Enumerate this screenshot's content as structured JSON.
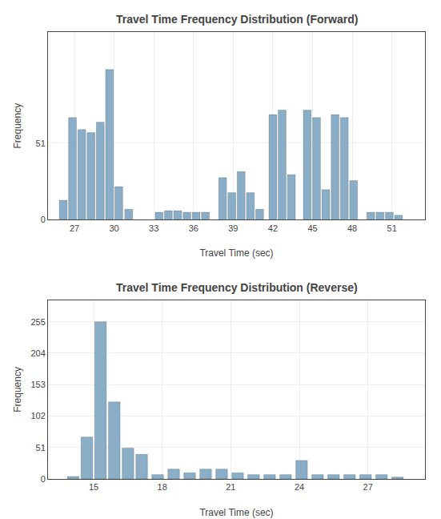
{
  "chart_data": [
    {
      "type": "bar",
      "title": "Travel Time Frequency Distribution (Forward)",
      "xlabel": "Travel Time (sec)",
      "ylabel": "Frequency",
      "x": [
        26.15,
        26.85,
        27.55,
        28.25,
        28.95,
        29.65,
        30.35,
        31.1,
        33.4,
        34.1,
        34.8,
        35.5,
        36.2,
        36.9,
        38.2,
        38.9,
        39.6,
        40.3,
        41.0,
        42.0,
        42.7,
        43.4,
        44.6,
        45.3,
        46.0,
        46.7,
        47.4,
        48.1,
        49.4,
        50.1,
        50.8,
        51.5
      ],
      "values": [
        13,
        68,
        60,
        58,
        65,
        100,
        22,
        7,
        5,
        6,
        6,
        5,
        5,
        5,
        28,
        18,
        32,
        18,
        7,
        70,
        73,
        30,
        73,
        68,
        20,
        70,
        68,
        26,
        5,
        5,
        5,
        3
      ],
      "color": "#8aaec8",
      "xlim": [
        25.0,
        53.5
      ],
      "ylim": [
        0,
        125
      ],
      "xticks": [
        27,
        30,
        33,
        36,
        39,
        42,
        45,
        48,
        51
      ],
      "yticks": [
        0,
        51
      ],
      "grid": true
    },
    {
      "type": "bar",
      "title": "Travel Time Frequency Distribution (Reverse)",
      "xlabel": "Travel Time (sec)",
      "ylabel": "Frequency",
      "x": [
        14.1,
        14.7,
        15.3,
        15.9,
        16.5,
        17.1,
        17.8,
        18.5,
        19.2,
        19.9,
        20.6,
        21.3,
        22.0,
        22.7,
        23.4,
        24.1,
        24.8,
        25.5,
        26.2,
        26.9,
        27.6,
        28.3
      ],
      "values": [
        4,
        68,
        255,
        125,
        50,
        40,
        7,
        16,
        10,
        16,
        16,
        10,
        7,
        7,
        7,
        30,
        7,
        7,
        7,
        7,
        7,
        3
      ],
      "color": "#8aaec8",
      "xlim": [
        13.0,
        29.5
      ],
      "ylim": [
        0,
        290
      ],
      "xticks": [
        15,
        18,
        21,
        24,
        27
      ],
      "yticks": [
        0,
        51,
        102,
        153,
        204,
        255
      ],
      "grid": true
    }
  ]
}
